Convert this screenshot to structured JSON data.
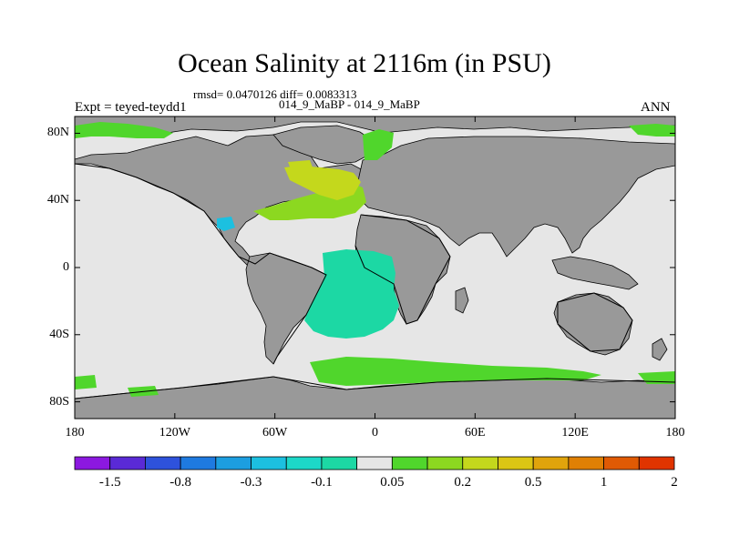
{
  "title": "Ocean Salinity at 2116m (in PSU)",
  "stats_line": "rmsd= 0.0470126 diff= 0.0083313",
  "period_line": "014_9_MaBP - 014_9_MaBP",
  "experiment": "Expt = teyed-teydd1",
  "season": "ANN",
  "axes": {
    "lat_ticks": [
      {
        "label": "80N",
        "value": 80
      },
      {
        "label": "40N",
        "value": 40
      },
      {
        "label": "0",
        "value": 0
      },
      {
        "label": "40S",
        "value": -40
      },
      {
        "label": "80S",
        "value": -80
      }
    ],
    "lon_ticks": [
      {
        "label": "180",
        "value": -180
      },
      {
        "label": "120W",
        "value": -120
      },
      {
        "label": "60W",
        "value": -60
      },
      {
        "label": "0",
        "value": 0
      },
      {
        "label": "60E",
        "value": 60
      },
      {
        "label": "120E",
        "value": 120
      },
      {
        "label": "180",
        "value": 180
      }
    ],
    "lon_range": [
      -180,
      180
    ],
    "lat_range": [
      -90,
      90
    ]
  },
  "colorbar": {
    "colors": [
      "#8c18e0",
      "#5a2ad6",
      "#2e52dc",
      "#1e7ae0",
      "#1c9ee0",
      "#1cc0e0",
      "#1cd8c8",
      "#1cd8a4",
      "#e6e6e6",
      "#50d62c",
      "#8cd820",
      "#c4d81c",
      "#dcc614",
      "#e0a40c",
      "#e08004",
      "#e05a04",
      "#e03400"
    ],
    "labels": [
      {
        "text": "-1.5",
        "boundary": 1
      },
      {
        "text": "-0.8",
        "boundary": 3
      },
      {
        "text": "-0.3",
        "boundary": 5
      },
      {
        "text": "-0.1",
        "boundary": 7
      },
      {
        "text": "0.05",
        "boundary": 9
      },
      {
        "text": "0.2",
        "boundary": 11
      },
      {
        "text": "0.5",
        "boundary": 13
      },
      {
        "text": "1",
        "boundary": 15
      },
      {
        "text": "2",
        "boundary": 17
      }
    ]
  },
  "map_colors": {
    "ocean_background": "#e6e6e6",
    "land": "#999999",
    "coast": "#000000"
  }
}
